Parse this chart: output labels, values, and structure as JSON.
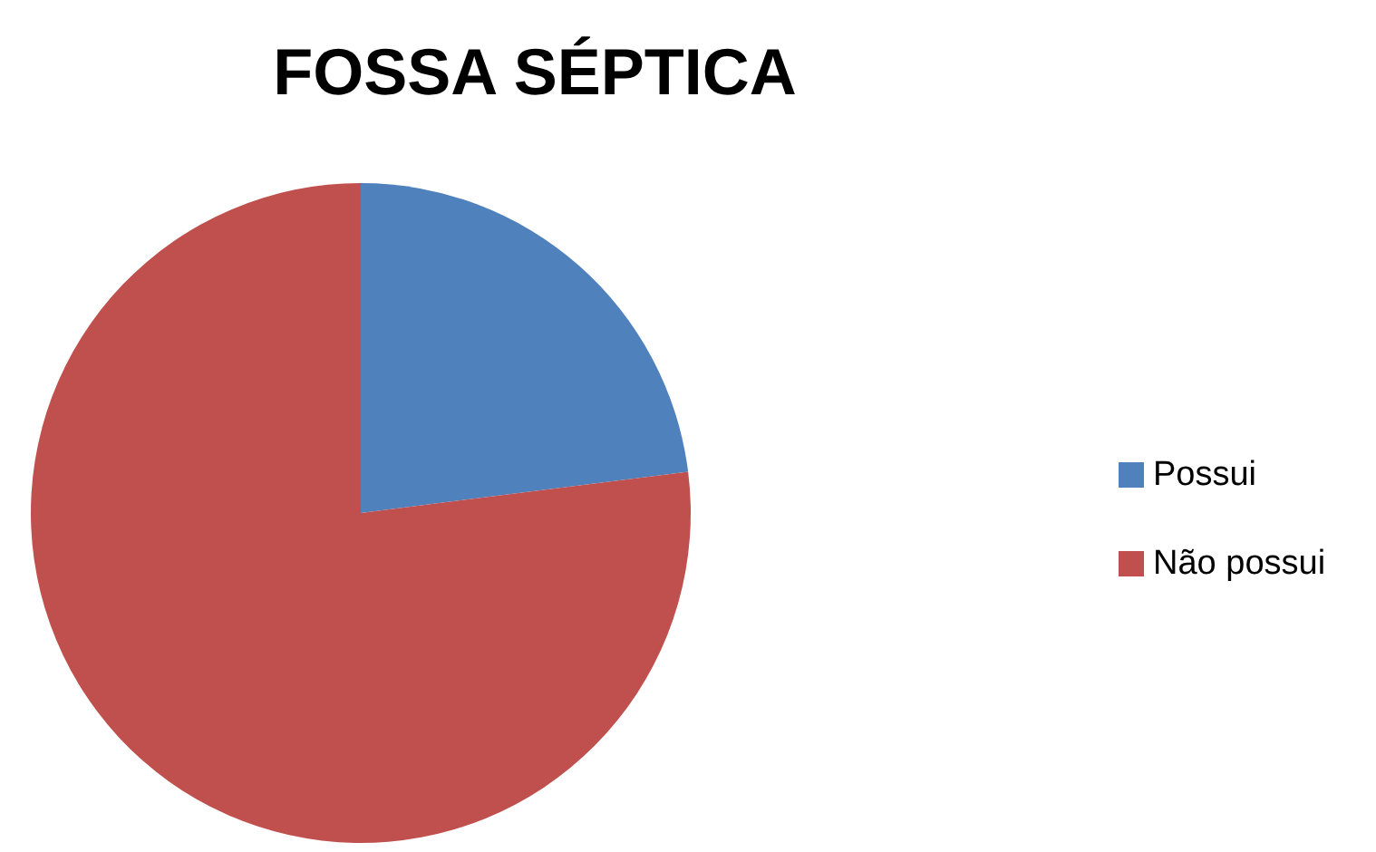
{
  "chart_data": {
    "type": "pie",
    "title": "FOSSA SÉPTICA",
    "categories": [
      "Possui",
      "Não possui"
    ],
    "values": [
      23,
      77
    ],
    "colors": [
      "#4f81bd",
      "#c0504d"
    ],
    "legend": "right"
  }
}
